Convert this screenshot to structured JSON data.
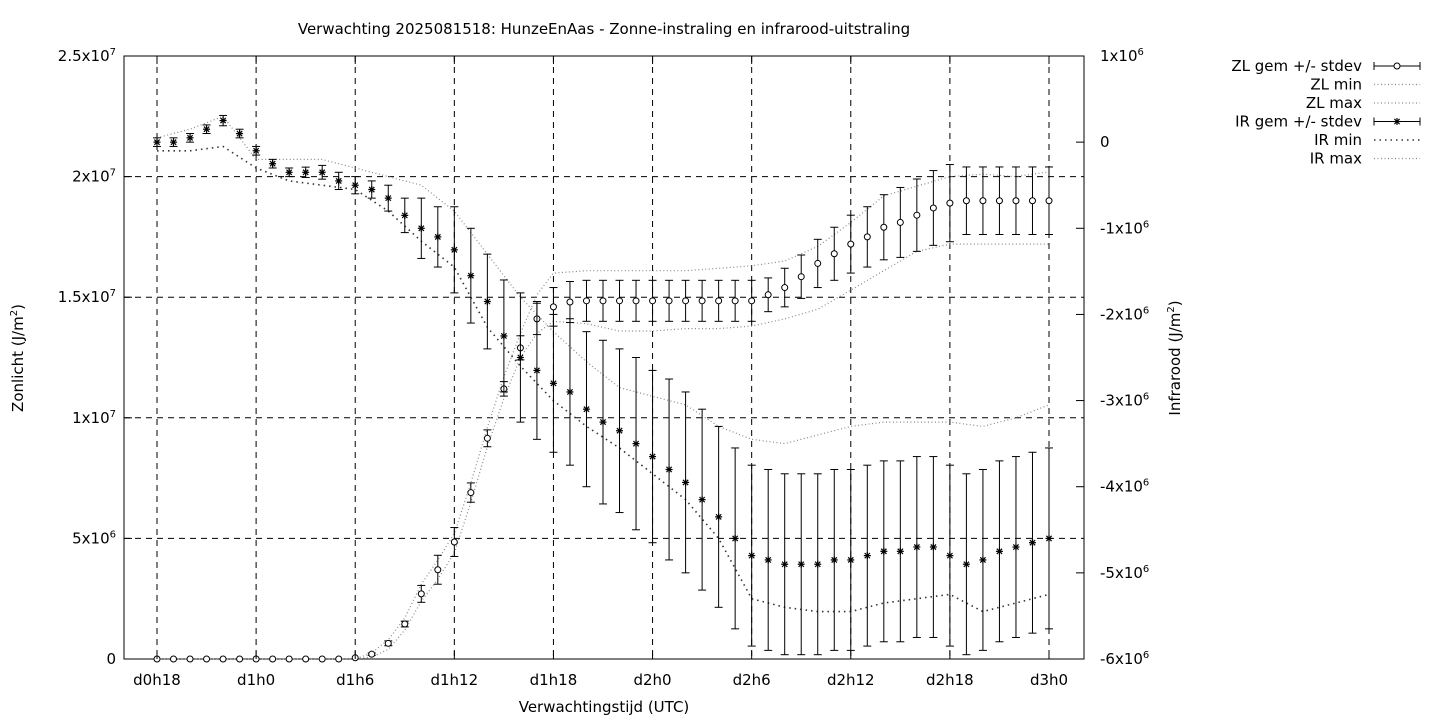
{
  "chart_data": {
    "type": "line",
    "title": "Verwachting 2025081518: HunzeEnAas - Zonne-instraling en infrarood-uitstraling",
    "xlabel": "Verwachtingstijd (UTC)",
    "ylabel_left": {
      "text": "Zonlicht (J/m",
      "sup": "2",
      "close": ")"
    },
    "ylabel_right": {
      "text": "Infrarood (J/m",
      "sup": "2",
      "close": ")"
    },
    "x_range_hours": [
      0,
      56
    ],
    "x_ticks": [
      {
        "h": 0,
        "label": "d0h18"
      },
      {
        "h": 6,
        "label": "d1h0"
      },
      {
        "h": 12,
        "label": "d1h6"
      },
      {
        "h": 18,
        "label": "d1h12"
      },
      {
        "h": 24,
        "label": "d1h18"
      },
      {
        "h": 30,
        "label": "d2h0"
      },
      {
        "h": 36,
        "label": "d2h6"
      },
      {
        "h": 42,
        "label": "d2h12"
      },
      {
        "h": 48,
        "label": "d2h18"
      },
      {
        "h": 54,
        "label": "d3h0"
      }
    ],
    "y_left": {
      "range": [
        0,
        25000000
      ],
      "ticks": [
        {
          "v": 0,
          "base": "0",
          "exp": ""
        },
        {
          "v": 5000000,
          "base": "5x10",
          "exp": "6"
        },
        {
          "v": 10000000,
          "base": "1x10",
          "exp": "7"
        },
        {
          "v": 15000000,
          "base": "1.5x10",
          "exp": "7"
        },
        {
          "v": 20000000,
          "base": "2x10",
          "exp": "7"
        },
        {
          "v": 25000000,
          "base": "2.5x10",
          "exp": "7"
        }
      ]
    },
    "y_right": {
      "range": [
        -6000000,
        1000000
      ],
      "ticks": [
        {
          "v": -6000000,
          "base": "-6x10",
          "exp": "6"
        },
        {
          "v": -5000000,
          "base": "-5x10",
          "exp": "6"
        },
        {
          "v": -4000000,
          "base": "-4x10",
          "exp": "6"
        },
        {
          "v": -3000000,
          "base": "-3x10",
          "exp": "6"
        },
        {
          "v": -2000000,
          "base": "-2x10",
          "exp": "6"
        },
        {
          "v": -1000000,
          "base": "-1x10",
          "exp": "6"
        },
        {
          "v": 0,
          "base": "0",
          "exp": ""
        },
        {
          "v": 1000000,
          "base": "1x10",
          "exp": "6"
        }
      ]
    },
    "grid": true,
    "legend_position": "outside-right-top",
    "series": [
      {
        "name": "ZL gem +/- stdev",
        "axis": "left",
        "marker": "circle",
        "style": "errorbars",
        "x": [
          0,
          1,
          2,
          3,
          4,
          5,
          6,
          7,
          8,
          9,
          10,
          11,
          12,
          13,
          14,
          15,
          16,
          17,
          18,
          19,
          20,
          21,
          22,
          23,
          24,
          25,
          26,
          27,
          28,
          29,
          30,
          31,
          32,
          33,
          34,
          35,
          36,
          37,
          38,
          39,
          40,
          41,
          42,
          43,
          44,
          45,
          46,
          47,
          48,
          49,
          50,
          51,
          52,
          53,
          54
        ],
        "mean": [
          0,
          0,
          0,
          0,
          0,
          0,
          0,
          0,
          0,
          0,
          0,
          0,
          50000,
          200000,
          650000,
          1450000,
          2700000,
          3700000,
          4850000,
          6900000,
          9150000,
          11200000,
          12900000,
          14100000,
          14600000,
          14800000,
          14850000,
          14850000,
          14850000,
          14850000,
          14850000,
          14850000,
          14850000,
          14850000,
          14850000,
          14850000,
          14850000,
          15100000,
          15400000,
          15850000,
          16400000,
          16800000,
          17200000,
          17500000,
          17900000,
          18100000,
          18400000,
          18700000,
          18900000,
          19000000,
          19000000,
          19000000,
          19000000,
          19000000,
          19000000
        ],
        "stdev": [
          0,
          0,
          0,
          0,
          0,
          0,
          0,
          0,
          0,
          0,
          0,
          0,
          0,
          50000,
          100000,
          120000,
          350000,
          600000,
          600000,
          400000,
          350000,
          300000,
          500000,
          650000,
          800000,
          850000,
          850000,
          850000,
          850000,
          850000,
          850000,
          850000,
          850000,
          850000,
          850000,
          850000,
          850000,
          700000,
          800000,
          900000,
          1000000,
          1100000,
          1200000,
          1250000,
          1350000,
          1450000,
          1500000,
          1550000,
          1600000,
          1400000,
          1400000,
          1400000,
          1400000,
          1400000,
          1400000
        ]
      },
      {
        "name": "ZL min",
        "axis": "left",
        "style": "dotted",
        "x": [
          0,
          6,
          12,
          13,
          14,
          15,
          16,
          17,
          18,
          19,
          20,
          21,
          22,
          23,
          24,
          26,
          28,
          30,
          32,
          34,
          36,
          38,
          40,
          42,
          44,
          46,
          48,
          50,
          52,
          54
        ],
        "values": [
          0,
          0,
          0,
          80000,
          400000,
          1200000,
          2400000,
          3300000,
          4400000,
          6500000,
          8800000,
          10800000,
          12500000,
          13500000,
          14000000,
          13900000,
          13600000,
          13600000,
          13700000,
          13700000,
          13800000,
          14100000,
          14500000,
          15300000,
          16100000,
          16900000,
          17200000,
          17200000,
          17200000,
          17200000
        ]
      },
      {
        "name": "ZL max",
        "axis": "left",
        "style": "dotted",
        "x": [
          0,
          6,
          12,
          13,
          14,
          15,
          16,
          17,
          18,
          19,
          20,
          21,
          22,
          23,
          24,
          26,
          28,
          30,
          32,
          34,
          36,
          38,
          40,
          42,
          44,
          46,
          48,
          50,
          52,
          54
        ],
        "values": [
          0,
          0,
          0,
          250000,
          800000,
          1700000,
          3100000,
          4100000,
          5200000,
          7300000,
          9600000,
          11700000,
          13500000,
          15100000,
          16000000,
          16100000,
          16100000,
          16100000,
          16100000,
          16200000,
          16300000,
          16500000,
          17100000,
          18100000,
          19200000,
          19600000,
          20000000,
          20100000,
          20000000,
          20200000
        ]
      },
      {
        "name": "IR gem +/- stdev",
        "axis": "right",
        "marker": "star",
        "style": "errorbars",
        "x": [
          0,
          1,
          2,
          3,
          4,
          5,
          6,
          7,
          8,
          9,
          10,
          11,
          12,
          13,
          14,
          15,
          16,
          17,
          18,
          19,
          20,
          21,
          22,
          23,
          24,
          25,
          26,
          27,
          28,
          29,
          30,
          31,
          32,
          33,
          34,
          35,
          36,
          37,
          38,
          39,
          40,
          41,
          42,
          43,
          44,
          45,
          46,
          47,
          48,
          49,
          50,
          51,
          52,
          53,
          54
        ],
        "mean": [
          0,
          0,
          50000,
          150000,
          250000,
          100000,
          -100000,
          -250000,
          -350000,
          -350000,
          -350000,
          -450000,
          -500000,
          -550000,
          -650000,
          -850000,
          -1000000,
          -1100000,
          -1250000,
          -1550000,
          -1850000,
          -2250000,
          -2500000,
          -2650000,
          -2800000,
          -2900000,
          -3100000,
          -3250000,
          -3350000,
          -3500000,
          -3650000,
          -3800000,
          -3950000,
          -4150000,
          -4350000,
          -4600000,
          -4800000,
          -4850000,
          -4900000,
          -4900000,
          -4900000,
          -4850000,
          -4850000,
          -4800000,
          -4750000,
          -4750000,
          -4700000,
          -4700000,
          -4800000,
          -4900000,
          -4850000,
          -4750000,
          -4700000,
          -4650000,
          -4600000
        ],
        "stdev": [
          50000,
          50000,
          50000,
          50000,
          60000,
          50000,
          50000,
          50000,
          50000,
          60000,
          80000,
          100000,
          100000,
          100000,
          150000,
          200000,
          350000,
          350000,
          500000,
          550000,
          550000,
          650000,
          750000,
          800000,
          800000,
          850000,
          900000,
          950000,
          950000,
          1000000,
          1000000,
          1050000,
          1050000,
          1050000,
          1050000,
          1050000,
          1050000,
          1050000,
          1050000,
          1050000,
          1050000,
          1050000,
          1050000,
          1050000,
          1050000,
          1050000,
          1050000,
          1050000,
          1050000,
          1050000,
          1050000,
          1050000,
          1050000,
          1050000,
          1050000
        ]
      },
      {
        "name": "IR min",
        "axis": "right",
        "style": "dotted",
        "x": [
          0,
          2,
          4,
          6,
          8,
          10,
          12,
          14,
          16,
          18,
          20,
          22,
          24,
          26,
          28,
          30,
          32,
          34,
          36,
          38,
          40,
          42,
          44,
          46,
          48,
          50,
          52,
          54
        ],
        "values": [
          -100000,
          -100000,
          -50000,
          -300000,
          -450000,
          -500000,
          -550000,
          -800000,
          -1150000,
          -1450000,
          -2150000,
          -2600000,
          -3000000,
          -3300000,
          -3550000,
          -3850000,
          -4150000,
          -4600000,
          -5300000,
          -5400000,
          -5450000,
          -5450000,
          -5350000,
          -5300000,
          -5250000,
          -5450000,
          -5350000,
          -5250000
        ]
      },
      {
        "name": "IR max",
        "axis": "right",
        "style": "dotted",
        "x": [
          0,
          2,
          4,
          6,
          8,
          10,
          12,
          14,
          16,
          18,
          20,
          22,
          24,
          26,
          28,
          30,
          32,
          34,
          36,
          38,
          40,
          42,
          44,
          46,
          48,
          50,
          52,
          54
        ],
        "values": [
          50000,
          150000,
          300000,
          -200000,
          -200000,
          -200000,
          -300000,
          -400000,
          -500000,
          -800000,
          -1300000,
          -1800000,
          -2200000,
          -2550000,
          -2850000,
          -2950000,
          -3050000,
          -3300000,
          -3450000,
          -3500000,
          -3400000,
          -3300000,
          -3250000,
          -3250000,
          -3250000,
          -3300000,
          -3200000,
          -3050000
        ]
      }
    ]
  }
}
